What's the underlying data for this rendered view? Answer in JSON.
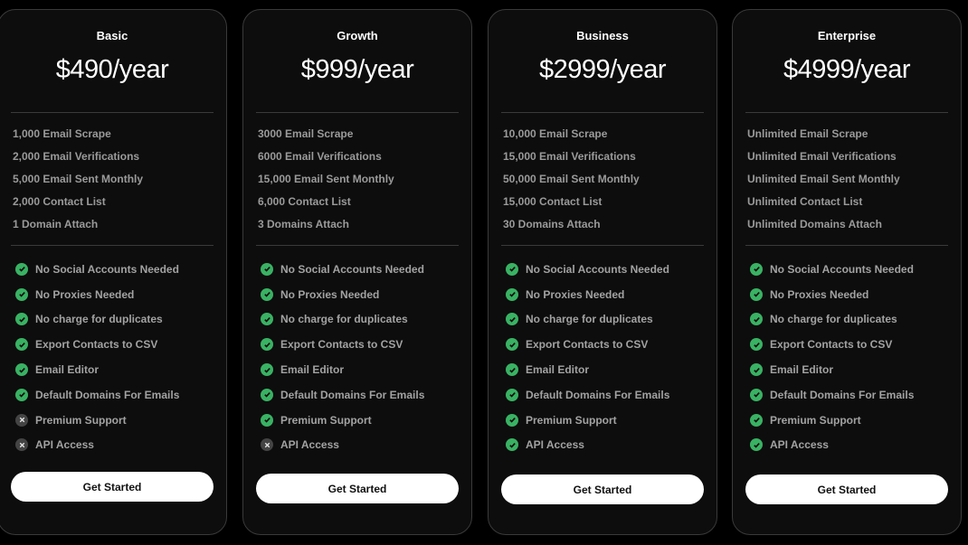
{
  "accent_check": "#3ec46d",
  "plans": [
    {
      "name": "Basic",
      "price": "$490/year",
      "quotas": [
        "1,000 Email Scrape",
        "2,000 Email Verifications",
        "5,000 Email Sent Monthly",
        "2,000 Contact List",
        "1 Domain Attach"
      ],
      "features": [
        {
          "label": "No Social Accounts Needed",
          "included": true
        },
        {
          "label": "No Proxies Needed",
          "included": true
        },
        {
          "label": "No charge for duplicates",
          "included": true
        },
        {
          "label": "Export Contacts to CSV",
          "included": true
        },
        {
          "label": "Email Editor",
          "included": true
        },
        {
          "label": "Default Domains For Emails",
          "included": true
        },
        {
          "label": "Premium Support",
          "included": false
        },
        {
          "label": "API Access",
          "included": false
        }
      ],
      "button": "Get Started"
    },
    {
      "name": "Growth",
      "price": "$999/year",
      "quotas": [
        "3000 Email Scrape",
        "6000 Email Verifications",
        "15,000 Email Sent Monthly",
        "6,000 Contact List",
        "3 Domains Attach"
      ],
      "features": [
        {
          "label": "No Social Accounts Needed",
          "included": true
        },
        {
          "label": "No Proxies Needed",
          "included": true
        },
        {
          "label": "No charge for duplicates",
          "included": true
        },
        {
          "label": "Export Contacts to CSV",
          "included": true
        },
        {
          "label": "Email Editor",
          "included": true
        },
        {
          "label": "Default Domains For Emails",
          "included": true
        },
        {
          "label": "Premium Support",
          "included": true
        },
        {
          "label": "API Access",
          "included": false
        }
      ],
      "button": "Get Started"
    },
    {
      "name": "Business",
      "price": "$2999/year",
      "quotas": [
        "10,000 Email Scrape",
        "15,000 Email Verifications",
        "50,000 Email Sent Monthly",
        "15,000 Contact List",
        "30 Domains Attach"
      ],
      "features": [
        {
          "label": "No Social Accounts Needed",
          "included": true
        },
        {
          "label": "No Proxies Needed",
          "included": true
        },
        {
          "label": "No charge for duplicates",
          "included": true
        },
        {
          "label": "Export Contacts to CSV",
          "included": true
        },
        {
          "label": "Email Editor",
          "included": true
        },
        {
          "label": "Default Domains For Emails",
          "included": true
        },
        {
          "label": "Premium Support",
          "included": true
        },
        {
          "label": "API Access",
          "included": true
        }
      ],
      "button": "Get Started"
    },
    {
      "name": "Enterprise",
      "price": "$4999/year",
      "quotas": [
        "Unlimited Email Scrape",
        "Unlimited Email Verifications",
        "Unlimited Email Sent Monthly",
        "Unlimited Contact List",
        "Unlimited Domains Attach"
      ],
      "features": [
        {
          "label": "No Social Accounts Needed",
          "included": true
        },
        {
          "label": "No Proxies Needed",
          "included": true
        },
        {
          "label": "No charge for duplicates",
          "included": true
        },
        {
          "label": "Export Contacts to CSV",
          "included": true
        },
        {
          "label": "Email Editor",
          "included": true
        },
        {
          "label": "Default Domains For Emails",
          "included": true
        },
        {
          "label": "Premium Support",
          "included": true
        },
        {
          "label": "API Access",
          "included": true
        }
      ],
      "button": "Get Started"
    }
  ]
}
